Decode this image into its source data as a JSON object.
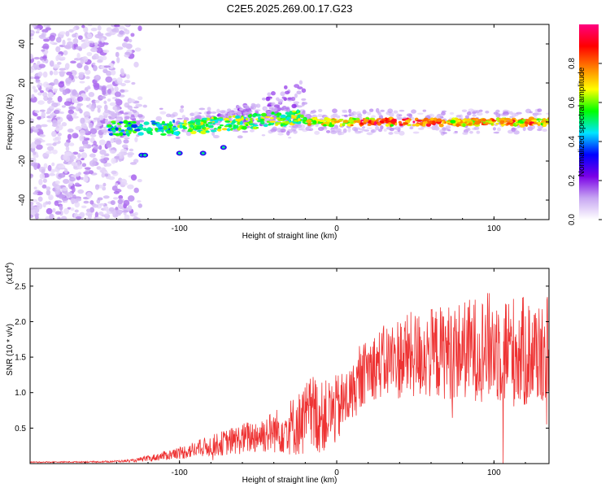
{
  "title": "C2E5.2025.269.00.17.G23",
  "chart_data": [
    {
      "type": "heatmap",
      "name": "spectrogram",
      "xlabel": "Height of straight line (km)",
      "ylabel": "Frequency (Hz)",
      "xlim": [
        -195,
        135
      ],
      "ylim": [
        -50,
        50
      ],
      "xticks": [
        -100,
        0,
        100
      ],
      "yticks": [
        -40,
        -20,
        0,
        20,
        40
      ],
      "colorbar": {
        "label": "Normalized spectral amplitude",
        "range": [
          0,
          1
        ],
        "ticks": [
          0.0,
          0.2,
          0.4,
          0.6,
          0.8
        ],
        "colormap": [
          "#ffffff",
          "#c7a6f2",
          "#7a00e6",
          "#0000ff",
          "#00e5ff",
          "#00ff00",
          "#ffff00",
          "#ff8000",
          "#ff0000",
          "#ff0080"
        ]
      },
      "features": [
        {
          "name": "diffuse noise region",
          "x_range": [
            -195,
            -130
          ],
          "y_range": [
            -50,
            50
          ],
          "amplitude": 0.05
        },
        {
          "name": "main signal ridge",
          "x_range": [
            -145,
            135
          ],
          "y_center_approx": 0,
          "amplitude_peak": 1.0
        },
        {
          "name": "rising arc",
          "x_range": [
            -80,
            -20
          ],
          "y_range": [
            0,
            22
          ],
          "amplitude": 0.15
        }
      ]
    },
    {
      "type": "line",
      "name": "snr",
      "xlabel": "Height of straight line (km)",
      "ylabel": "SNR (10 * v/v)",
      "scale_label": "(x10",
      "scale_exponent": "4",
      "xlim": [
        -195,
        135
      ],
      "ylim": [
        0,
        27500
      ],
      "xticks": [
        -100,
        0,
        100
      ],
      "yticks": [
        5000,
        10000,
        15000,
        20000,
        25000
      ],
      "ytick_labels": [
        "0.5",
        "1.0",
        "1.5",
        "2.0",
        "2.5"
      ],
      "color": "#ee3333",
      "envelope": {
        "x": [
          -195,
          -150,
          -130,
          -120,
          -100,
          -80,
          -60,
          -40,
          -25,
          -15,
          -10,
          0,
          10,
          20,
          40,
          60,
          80,
          100,
          120,
          135
        ],
        "mean": [
          200,
          250,
          400,
          700,
          1500,
          2500,
          3500,
          4500,
          5500,
          7000,
          6500,
          7500,
          10000,
          13500,
          15000,
          15500,
          16000,
          16500,
          15500,
          16000
        ],
        "amplitude": [
          80,
          100,
          200,
          400,
          900,
          1500,
          2200,
          3000,
          4500,
          6000,
          5000,
          5000,
          4000,
          4500,
          6000,
          6500,
          7000,
          8000,
          8000,
          7500
        ]
      }
    }
  ]
}
